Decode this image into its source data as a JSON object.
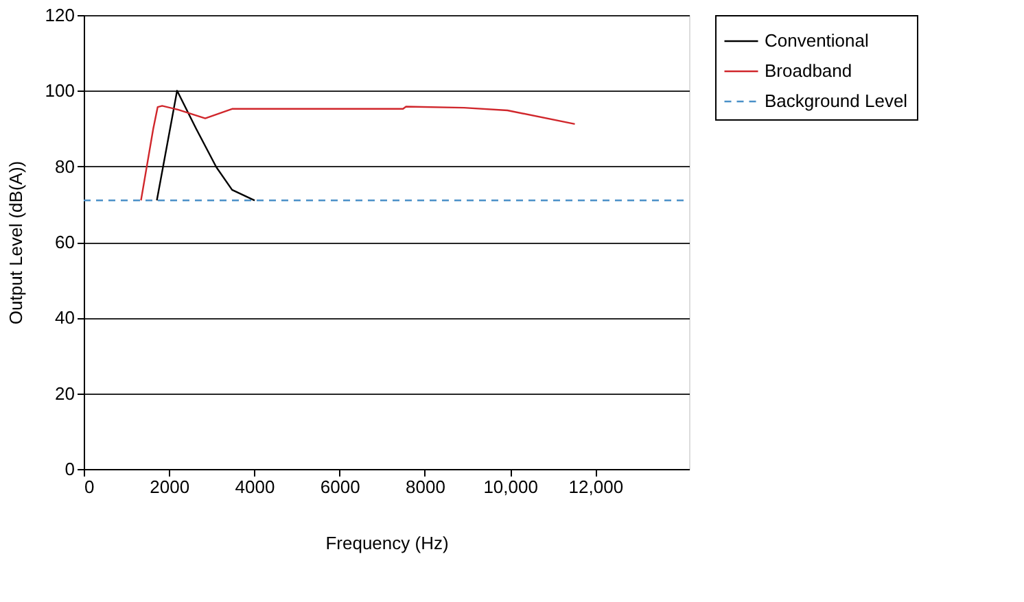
{
  "chart_data": {
    "type": "line",
    "xlabel": "Frequency (Hz)",
    "ylabel": "Output Level (dB(A))",
    "xlim": [
      0,
      14200
    ],
    "xticks": [
      0,
      2000,
      4000,
      6000,
      {
        "value": 8000,
        "label": "8000"
      },
      {
        "value": 10000,
        "label": "10,000"
      },
      {
        "value": 12000,
        "label": "12,000"
      }
    ],
    "ylim": [
      0,
      120
    ],
    "yticks": [
      0,
      20,
      40,
      60,
      80,
      100,
      120
    ],
    "grid": "y",
    "legend": "right",
    "series": [
      {
        "name": "Conventional",
        "color": "#000000",
        "line_style": "solid",
        "x": [
          1715,
          2190,
          2635,
          3110,
          3480,
          4010
        ],
        "values": [
          71,
          100,
          90,
          79.8,
          73.8,
          71
        ]
      },
      {
        "name": "Broadband",
        "color": "#d0262b",
        "line_style": "solid",
        "x": [
          1343,
          1630,
          1735,
          1840,
          2210,
          2850,
          3480,
          7490,
          7560,
          8920,
          9940,
          11520
        ],
        "values": [
          71,
          89.9,
          95.7,
          96,
          95,
          92.7,
          95.2,
          95.2,
          95.8,
          95.5,
          94.8,
          91.2
        ]
      },
      {
        "name": "Background Level",
        "color": "#4a90c8",
        "line_style": "dashed",
        "x": [
          0,
          14200
        ],
        "values": [
          71,
          71
        ]
      }
    ]
  }
}
